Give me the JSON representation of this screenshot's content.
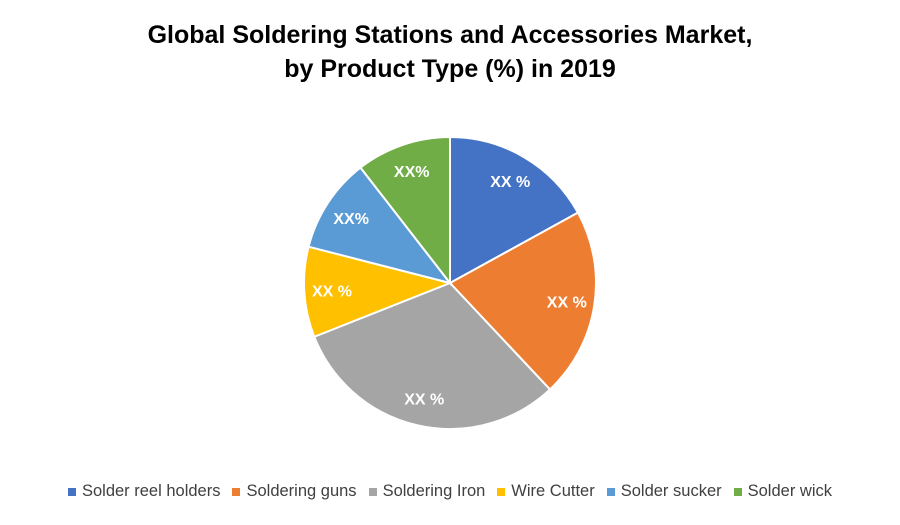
{
  "chart_data": {
    "type": "pie",
    "title_line1": "Global Soldering Stations and Accessories Market,",
    "title_line2": "by Product Type (%) in 2019",
    "legend_position": "bottom",
    "slices": [
      {
        "name": "Solder reel holders",
        "value": 17,
        "label": "XX %",
        "color": "#4472C4"
      },
      {
        "name": "Soldering guns",
        "value": 21,
        "label": "XX %",
        "color": "#ED7D31"
      },
      {
        "name": "Soldering Iron",
        "value": 31,
        "label": "XX %",
        "color": "#A5A5A5"
      },
      {
        "name": "Wire Cutter",
        "value": 10,
        "label": "XX %",
        "color": "#FFC000"
      },
      {
        "name": "Solder sucker",
        "value": 10.5,
        "label": "XX%",
        "color": "#5B9BD5"
      },
      {
        "name": "Solder wick",
        "value": 10.5,
        "label": "XX%",
        "color": "#70AD47"
      }
    ]
  }
}
